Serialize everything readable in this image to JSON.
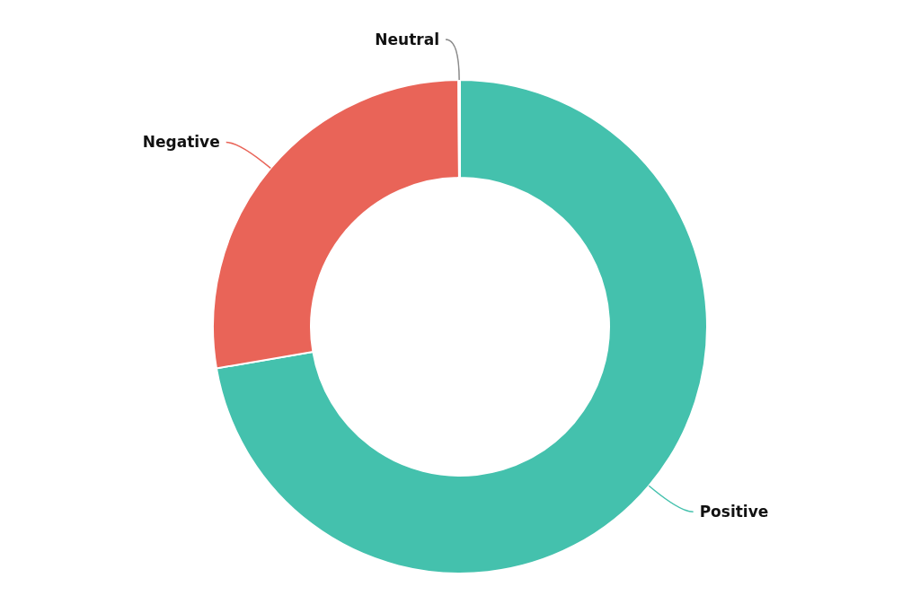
{
  "chart_data": {
    "type": "donut",
    "categories": [
      "Positive",
      "Negative",
      "Neutral"
    ],
    "values": [
      72.3,
      27.6,
      0.1
    ],
    "colors": [
      "#44c1ad",
      "#e96458",
      "#8a8a8a"
    ]
  }
}
